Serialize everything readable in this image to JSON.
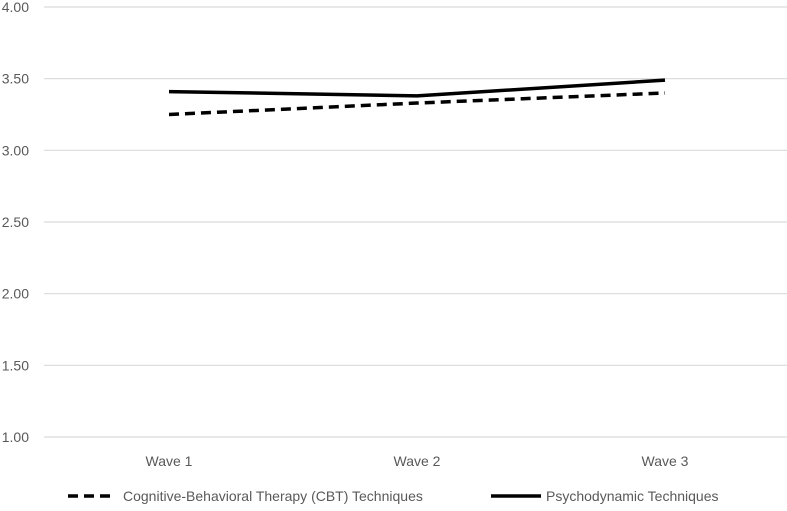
{
  "chart_data": {
    "type": "line",
    "categories": [
      "Wave 1",
      "Wave 2",
      "Wave 3"
    ],
    "series": [
      {
        "name": "Cognitive-Behavioral Therapy (CBT) Techniques",
        "values": [
          3.25,
          3.33,
          3.4
        ],
        "style": "dashed",
        "color": "#000000"
      },
      {
        "name": "Psychodynamic Techniques",
        "values": [
          3.41,
          3.38,
          3.49
        ],
        "style": "solid",
        "color": "#000000"
      }
    ],
    "ylim": [
      1.0,
      4.0
    ],
    "yticks": [
      "1.00",
      "1.50",
      "2.00",
      "2.50",
      "3.00",
      "3.50",
      "4.00"
    ],
    "grid": true,
    "legend": "bottom",
    "colors": {
      "gridline": "#d9d9d9",
      "tick_text": "#595959"
    }
  }
}
